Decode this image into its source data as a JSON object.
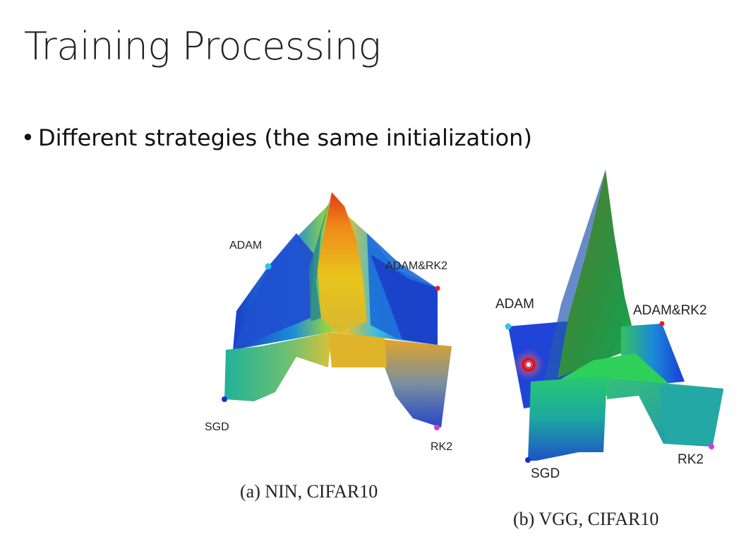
{
  "slide": {
    "title": "Training Processing",
    "bullet_marker": "•",
    "bullet": "Different strategies (the same initialization)"
  },
  "figure_a": {
    "labels": {
      "top_left": "ADAM",
      "top_right": "ADAM&RK2",
      "bottom_left": "SGD",
      "bottom_right": "RK2"
    },
    "caption": "(a) NIN, CIFAR10"
  },
  "figure_b": {
    "labels": {
      "top_left": "ADAM",
      "top_right": "ADAM&RK2",
      "bottom_left": "SGD",
      "bottom_right": "RK2"
    },
    "caption": "(b) VGG, CIFAR10"
  },
  "colors": {
    "adam_point": "#33c6e8",
    "adam_rk2_point": "#e02020",
    "sgd_point": "#1b2fd0",
    "rk2_point": "#d63cd6",
    "cursor_marker": "#e81010"
  }
}
